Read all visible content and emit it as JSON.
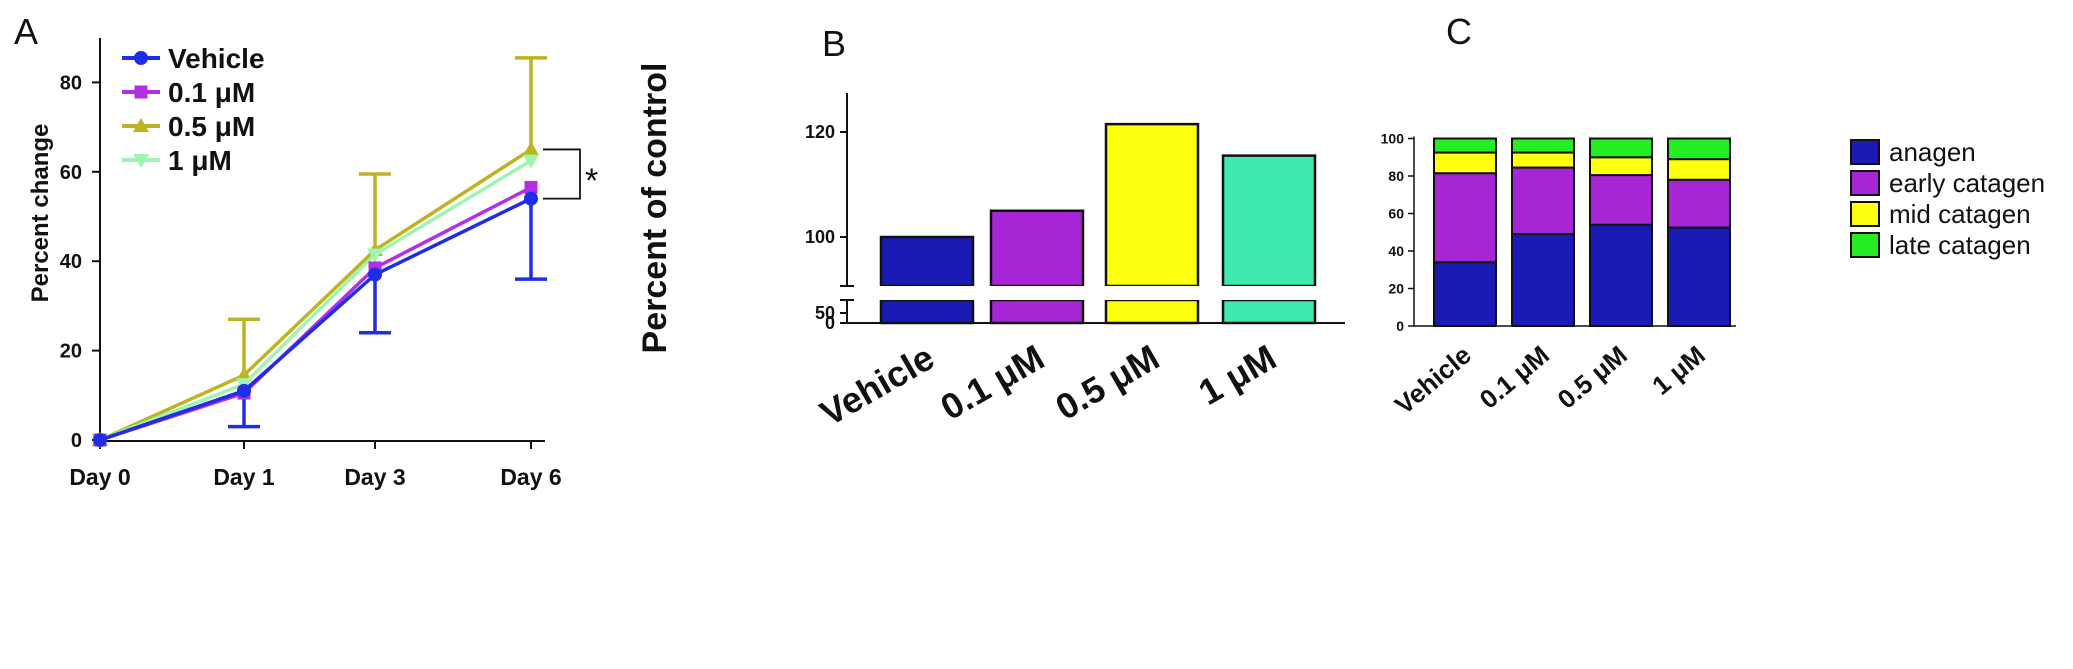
{
  "panels": {
    "a": "A",
    "b": "B",
    "c": "C"
  },
  "chart_data": [
    {
      "type": "line",
      "panel": "A",
      "title": "",
      "xlabel": "",
      "ylabel": "Percent change",
      "categories": [
        "Day 0",
        "Day 1",
        "Day 3",
        "Day 6"
      ],
      "ylim": [
        0,
        90
      ],
      "yticks": [
        0,
        20,
        40,
        60,
        80
      ],
      "legend_position": "top-left",
      "series": [
        {
          "name": "Vehicle",
          "color": "#1f2ee6",
          "marker": "circle",
          "values": [
            0,
            11,
            37,
            54
          ],
          "error_lower": [
            0,
            8,
            13,
            18
          ]
        },
        {
          "name": "0.1 μM",
          "color": "#b22fe6",
          "marker": "square",
          "values": [
            0,
            10.5,
            38.5,
            56.5
          ]
        },
        {
          "name": "0.5 μM",
          "color": "#bdb420",
          "marker": "triangle-up",
          "values": [
            0,
            14.5,
            42.5,
            65
          ],
          "error_upper": [
            0,
            12.5,
            17,
            20.5
          ]
        },
        {
          "name": "1 μM",
          "color": "#9ff5b0",
          "marker": "triangle-down",
          "values": [
            0,
            12.5,
            41.5,
            62.5
          ]
        }
      ],
      "annotation": "*"
    },
    {
      "type": "bar",
      "panel": "B",
      "title": "",
      "xlabel": "",
      "ylabel": "Percent of control",
      "categories": [
        "Vehicle",
        "0.1 μM",
        "0.5 μM",
        "1 μM"
      ],
      "values": [
        100,
        105,
        121.5,
        115.5
      ],
      "colors": [
        "#1a1ab4",
        "#a626d6",
        "#ffff10",
        "#3fe8ad"
      ],
      "axis_break": true,
      "yticks_lower": [
        0,
        50
      ],
      "yticks_upper": [
        100,
        120
      ]
    },
    {
      "type": "bar",
      "stacked": true,
      "panel": "C",
      "title": "",
      "xlabel": "",
      "ylabel": "",
      "categories": [
        "Vehicle",
        "0.1 μM",
        "0.5 μM",
        "1 μM"
      ],
      "ylim": [
        0,
        100
      ],
      "yticks": [
        0,
        20,
        40,
        60,
        80,
        100
      ],
      "legend_position": "right",
      "series": [
        {
          "name": "anagen",
          "color": "#1a1ab4",
          "values": [
            34,
            49,
            54,
            52.5
          ]
        },
        {
          "name": "early catagen",
          "color": "#a626d6",
          "values": [
            47.5,
            35.5,
            26.5,
            25.5
          ]
        },
        {
          "name": "mid catagen",
          "color": "#ffff10",
          "values": [
            11,
            8,
            9.5,
            11
          ]
        },
        {
          "name": "late catagen",
          "color": "#22ee22",
          "values": [
            7.5,
            7.5,
            10,
            11
          ]
        }
      ]
    }
  ]
}
